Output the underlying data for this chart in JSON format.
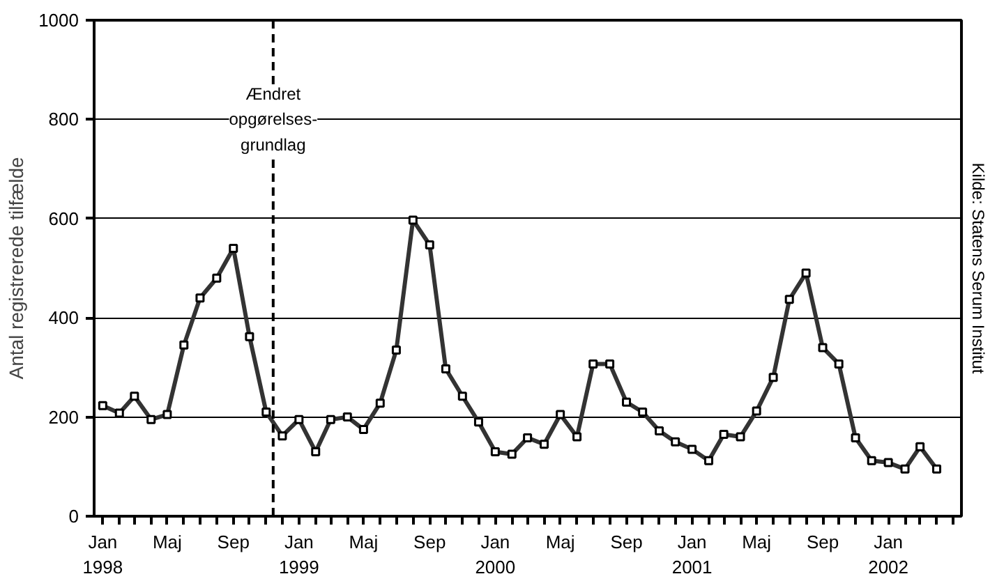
{
  "chart_data": {
    "type": "line",
    "ylabel": "Antal registrerede tilfælde",
    "x": [
      "1998-01",
      "1998-02",
      "1998-03",
      "1998-04",
      "1998-05",
      "1998-06",
      "1998-07",
      "1998-08",
      "1998-09",
      "1998-10",
      "1998-11",
      "1998-12",
      "1999-01",
      "1999-02",
      "1999-03",
      "1999-04",
      "1999-05",
      "1999-06",
      "1999-07",
      "1999-08",
      "1999-09",
      "1999-10",
      "1999-11",
      "1999-12",
      "2000-01",
      "2000-02",
      "2000-03",
      "2000-04",
      "2000-05",
      "2000-06",
      "2000-07",
      "2000-08",
      "2000-09",
      "2000-10",
      "2000-11",
      "2000-12",
      "2001-01",
      "2001-02",
      "2001-03",
      "2001-04",
      "2001-05",
      "2001-06",
      "2001-07",
      "2001-08",
      "2001-09",
      "2001-10",
      "2001-11",
      "2001-12",
      "2002-01",
      "2002-02",
      "2002-03",
      "2002-04"
    ],
    "series": [
      {
        "color": "#333333",
        "values": [
          223,
          208,
          242,
          195,
          205,
          345,
          440,
          480,
          540,
          362,
          210,
          162,
          195,
          130,
          195,
          200,
          175,
          228,
          335,
          597,
          547,
          297,
          242,
          190,
          130,
          125,
          158,
          145,
          205,
          160,
          307,
          307,
          230,
          210,
          172,
          150,
          135,
          112,
          165,
          160,
          212,
          280,
          437,
          490,
          340,
          307,
          158,
          112,
          108,
          95,
          140,
          95
        ]
      }
    ],
    "marker": "square",
    "line_style": "solid",
    "grid": "y",
    "xlim": [
      "1997-12-16",
      "2002-05-17"
    ],
    "ylim": [
      0,
      1000
    ],
    "yticks": [
      0,
      200,
      400,
      600,
      800,
      1000
    ],
    "xticks": [
      {
        "value": "1998-01",
        "label": "Jan\n1998"
      },
      {
        "value": "1998-02",
        "label": null
      },
      {
        "value": "1998-03",
        "label": null
      },
      {
        "value": "1998-04",
        "label": null
      },
      {
        "value": "1998-05",
        "label": "Maj"
      },
      {
        "value": "1998-06",
        "label": null
      },
      {
        "value": "1998-07",
        "label": null
      },
      {
        "value": "1998-08",
        "label": null
      },
      {
        "value": "1998-09",
        "label": "Sep"
      },
      {
        "value": "1998-10",
        "label": null
      },
      {
        "value": "1998-11",
        "label": null
      },
      {
        "value": "1998-12",
        "label": null
      },
      {
        "value": "1999-01",
        "label": "Jan\n1999"
      },
      {
        "value": "1999-02",
        "label": null
      },
      {
        "value": "1999-03",
        "label": null
      },
      {
        "value": "1999-04",
        "label": null
      },
      {
        "value": "1999-05",
        "label": "Maj"
      },
      {
        "value": "1999-06",
        "label": null
      },
      {
        "value": "1999-07",
        "label": null
      },
      {
        "value": "1999-08",
        "label": null
      },
      {
        "value": "1999-09",
        "label": "Sep"
      },
      {
        "value": "1999-10",
        "label": null
      },
      {
        "value": "1999-11",
        "label": null
      },
      {
        "value": "1999-12",
        "label": null
      },
      {
        "value": "2000-01",
        "label": "Jan\n2000"
      },
      {
        "value": "2000-02",
        "label": null
      },
      {
        "value": "2000-03",
        "label": null
      },
      {
        "value": "2000-04",
        "label": null
      },
      {
        "value": "2000-05",
        "label": "Maj"
      },
      {
        "value": "2000-06",
        "label": null
      },
      {
        "value": "2000-07",
        "label": null
      },
      {
        "value": "2000-08",
        "label": null
      },
      {
        "value": "2000-09",
        "label": "Sep"
      },
      {
        "value": "2000-10",
        "label": null
      },
      {
        "value": "2000-11",
        "label": null
      },
      {
        "value": "2000-12",
        "label": null
      },
      {
        "value": "2001-01",
        "label": "Jan\n2001"
      },
      {
        "value": "2001-02",
        "label": null
      },
      {
        "value": "2001-03",
        "label": null
      },
      {
        "value": "2001-04",
        "label": null
      },
      {
        "value": "2001-05",
        "label": "Maj"
      },
      {
        "value": "2001-06",
        "label": null
      },
      {
        "value": "2001-07",
        "label": null
      },
      {
        "value": "2001-08",
        "label": null
      },
      {
        "value": "2001-09",
        "label": "Sep"
      },
      {
        "value": "2001-10",
        "label": null
      },
      {
        "value": "2001-11",
        "label": null
      },
      {
        "value": "2001-12",
        "label": null
      },
      {
        "value": "2002-01",
        "label": "Jan\n2002"
      },
      {
        "value": "2002-02",
        "label": null
      },
      {
        "value": "2002-03",
        "label": null
      },
      {
        "value": "2002-04",
        "label": null
      },
      {
        "value": "2002-05",
        "label": null
      }
    ],
    "ref_lines": [
      {
        "axis": "x",
        "value": "1998-11-14",
        "label": "Ændret\nopgørelses-\ngrundlag",
        "color": "#000000",
        "line_style": "dashed"
      }
    ],
    "annotations": [
      "Kilde: Statens Serum Institut"
    ]
  }
}
